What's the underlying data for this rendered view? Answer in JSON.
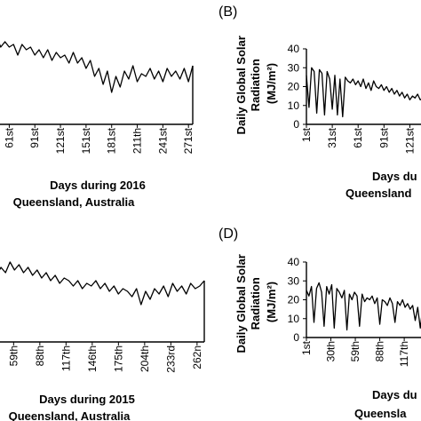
{
  "chart_data": [
    {
      "panel": "",
      "type": "line",
      "xlabel": "Days during 2016",
      "subtitle": "Queensland, Australia",
      "ylabel": "",
      "ylim": [
        0,
        40
      ],
      "x_ticks": [
        "61st",
        "91st",
        "121st",
        "151st",
        "181st",
        "211th",
        "241st",
        "271st"
      ],
      "y_ticks": [],
      "x": [
        46,
        51,
        56,
        61,
        66,
        71,
        76,
        81,
        86,
        91,
        96,
        101,
        106,
        111,
        116,
        121,
        126,
        131,
        136,
        141,
        146,
        151,
        156,
        161,
        166,
        171,
        176,
        181,
        186,
        191,
        196,
        201,
        206,
        211,
        216,
        221,
        226,
        231,
        236,
        241,
        246,
        251,
        256,
        261,
        266,
        271,
        276
      ],
      "values": [
        33,
        29,
        31,
        29,
        30,
        26,
        30,
        28,
        29,
        26,
        28,
        25,
        28,
        24,
        27,
        25,
        26,
        23,
        27,
        23,
        25,
        21,
        24,
        18,
        21,
        15,
        20,
        12,
        18,
        14,
        20,
        17,
        22,
        16,
        19,
        18,
        21,
        17,
        20,
        16,
        21,
        18,
        20,
        17,
        21,
        16,
        22
      ]
    },
    {
      "panel": "(B)",
      "type": "line",
      "xlabel": "Days du",
      "subtitle": "Queensland",
      "ylabel": "Daily Global Solar Radiation (MJ/m²)",
      "ylim": [
        0,
        40
      ],
      "x_ticks": [
        "1st",
        "31st",
        "61st",
        "91st",
        "121st"
      ],
      "y_ticks": [
        "0",
        "10",
        "20",
        "30",
        "40"
      ],
      "x": [
        1,
        4,
        7,
        10,
        13,
        16,
        19,
        22,
        25,
        28,
        31,
        34,
        37,
        40,
        43,
        46,
        49,
        52,
        55,
        58,
        61,
        64,
        67,
        70,
        73,
        76,
        79,
        82,
        85,
        88,
        91,
        94,
        97,
        100,
        103,
        106,
        109,
        112,
        115,
        118,
        121,
        124,
        127,
        130,
        133,
        136
      ],
      "values": [
        26,
        9,
        30,
        28,
        6,
        29,
        27,
        5,
        28,
        24,
        8,
        26,
        5,
        24,
        4,
        25,
        23,
        22,
        24,
        21,
        23,
        20,
        24,
        19,
        22,
        18,
        23,
        20,
        19,
        21,
        18,
        20,
        17,
        19,
        16,
        18,
        15,
        17,
        14,
        16,
        13,
        15,
        14,
        16,
        13,
        14
      ]
    },
    {
      "panel": "",
      "type": "line",
      "xlabel": "Days during 2015",
      "subtitle": "Queensland, Australia",
      "ylabel": "",
      "ylim": [
        0,
        40
      ],
      "x_ticks": [
        "59th",
        "88th",
        "117th",
        "146th",
        "175th",
        "204th",
        "233rd",
        "262n"
      ],
      "y_ticks": [],
      "x": [
        40,
        45,
        50,
        55,
        60,
        65,
        70,
        75,
        80,
        85,
        90,
        95,
        100,
        105,
        110,
        115,
        120,
        125,
        130,
        135,
        140,
        145,
        150,
        155,
        160,
        165,
        170,
        175,
        180,
        185,
        190,
        195,
        200,
        205,
        210,
        215,
        220,
        225,
        230,
        235,
        240,
        245,
        250,
        255,
        260,
        265,
        270
      ],
      "values": [
        25,
        28,
        26,
        30,
        27,
        29,
        26,
        28,
        25,
        27,
        24,
        26,
        23,
        25,
        22,
        24,
        23,
        21,
        23,
        20,
        22,
        21,
        23,
        20,
        22,
        19,
        21,
        18,
        20,
        19,
        17,
        20,
        14,
        19,
        16,
        20,
        18,
        21,
        17,
        22,
        19,
        21,
        18,
        22,
        20,
        21,
        23
      ]
    },
    {
      "panel": "(D)",
      "type": "line",
      "xlabel": "Days du",
      "subtitle": "Queensla",
      "ylabel": "Daily Global Solar Radiation (MJ/m²)",
      "ylim": [
        0,
        40
      ],
      "x_ticks": [
        "1st",
        "30th",
        "59th",
        "88th",
        "117th"
      ],
      "y_ticks": [
        "0",
        "10",
        "20",
        "30",
        "40"
      ],
      "x": [
        1,
        4,
        7,
        10,
        13,
        16,
        19,
        22,
        25,
        28,
        31,
        34,
        37,
        40,
        43,
        46,
        49,
        52,
        55,
        58,
        61,
        64,
        67,
        70,
        73,
        76,
        79,
        82,
        85,
        88,
        91,
        94,
        97,
        100,
        103,
        106,
        109,
        112,
        115,
        118,
        121,
        124,
        127,
        130,
        133,
        136,
        139
      ],
      "values": [
        25,
        22,
        27,
        8,
        26,
        29,
        24,
        6,
        27,
        23,
        28,
        5,
        26,
        24,
        21,
        25,
        4,
        23,
        20,
        24,
        22,
        6,
        23,
        19,
        21,
        20,
        22,
        18,
        21,
        7,
        20,
        19,
        17,
        21,
        18,
        8,
        19,
        17,
        20,
        16,
        18,
        15,
        17,
        9,
        16,
        5,
        16
      ]
    }
  ]
}
